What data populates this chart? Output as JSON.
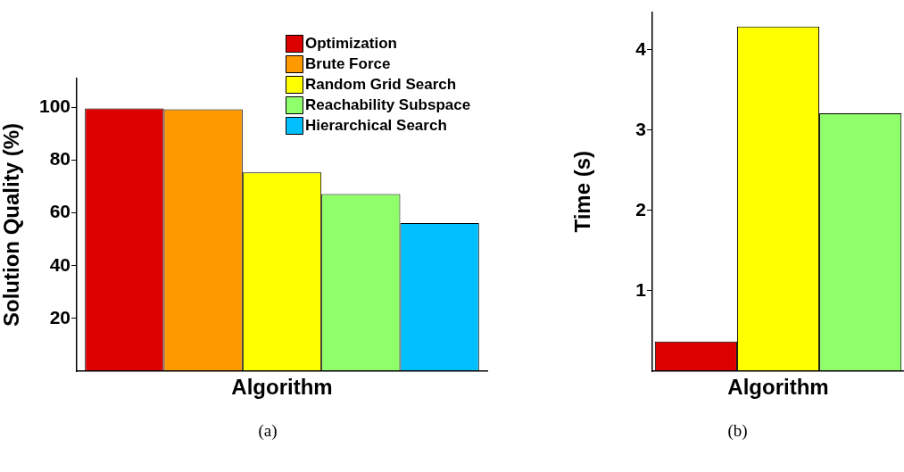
{
  "chart_data": [
    {
      "type": "bar",
      "categories": [
        null
      ],
      "ylabel": "Solution Quality (%)",
      "xlabel": "Algorithm",
      "ylim": [
        0,
        111
      ],
      "yticks": [
        20,
        40,
        60,
        80,
        100
      ],
      "grid": false,
      "legend": "top right",
      "annotations": [
        "(a)"
      ],
      "series": [
        {
          "name": "Optimization",
          "color": "#dd0000",
          "values": [
            99.7
          ]
        },
        {
          "name": "Brute Force",
          "color": "#ff9900",
          "values": [
            99.3
          ]
        },
        {
          "name": "Random Grid Search",
          "color": "#ffff00",
          "values": [
            75.4
          ]
        },
        {
          "name": "Reachability Subspace",
          "color": "#90ff6c",
          "values": [
            67.2
          ]
        },
        {
          "name": "Hierarchical Search",
          "color": "#00bfff",
          "values": [
            56.2
          ]
        }
      ]
    },
    {
      "type": "bar",
      "categories": [
        null
      ],
      "ylabel": "Time (s)",
      "xlabel": "Algorithm",
      "ylim": [
        0,
        4.47
      ],
      "yticks": [
        1,
        2,
        3,
        4
      ],
      "grid": false,
      "annotations": [
        "(b)"
      ],
      "series": [
        {
          "color": "#dd0000",
          "values": [
            0.37
          ]
        },
        {
          "color": "#ffff00",
          "values": [
            4.29
          ]
        },
        {
          "color": "#90ff6c",
          "values": [
            3.21
          ]
        }
      ]
    }
  ]
}
